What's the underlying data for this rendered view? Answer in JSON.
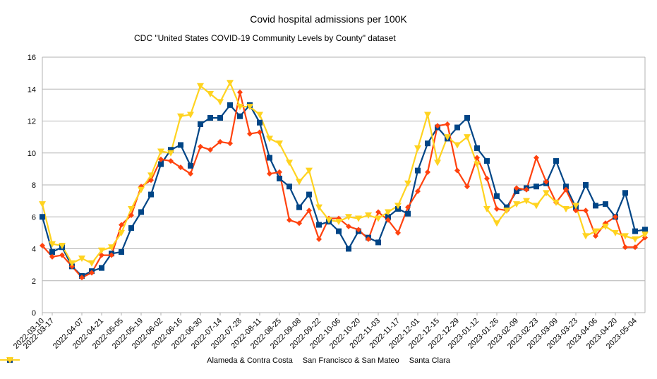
{
  "chart_data": {
    "type": "line",
    "title": "Covid hospital admissions per 100K",
    "subtitle": "CDC \"United States COVID-19 Community Levels by County\" dataset",
    "xlabel": "",
    "ylabel": "",
    "ylim": [
      0,
      16
    ],
    "yticks": [
      0,
      2,
      4,
      6,
      8,
      10,
      12,
      14,
      16
    ],
    "grid": true,
    "legend": "bottom",
    "x": [
      "2022-03-10",
      "2022-03-17",
      "2022-03-24",
      "2022-03-31",
      "2022-04-07",
      "2022-04-14",
      "2022-04-21",
      "2022-04-28",
      "2022-05-05",
      "2022-05-12",
      "2022-05-19",
      "2022-05-26",
      "2022-06-02",
      "2022-06-09",
      "2022-06-16",
      "2022-06-23",
      "2022-06-30",
      "2022-07-07",
      "2022-07-14",
      "2022-07-21",
      "2022-07-28",
      "2022-08-04",
      "2022-08-11",
      "2022-08-18",
      "2022-08-25",
      "2022-09-01",
      "2022-09-08",
      "2022-09-15",
      "2022-09-22",
      "2022-09-29",
      "2022-10-06",
      "2022-10-13",
      "2022-10-20",
      "2022-10-27",
      "2022-11-03",
      "2022-11-10",
      "2022-11-17",
      "2022-11-24",
      "2022-12-01",
      "2022-12-08",
      "2022-12-15",
      "2022-12-22",
      "2022-12-29",
      "2023-01-05",
      "2023-01-12",
      "2023-01-19",
      "2023-01-26",
      "2023-02-02",
      "2023-02-09",
      "2023-02-16",
      "2023-02-23",
      "2023-03-02",
      "2023-03-09",
      "2023-03-16",
      "2023-03-23",
      "2023-03-30",
      "2023-04-06",
      "2023-04-13",
      "2023-04-20",
      "2023-04-27",
      "2023-05-04",
      "2023-05-11"
    ],
    "x_tick_labels": [
      "2022-03-10",
      "2022-03-17",
      "2022-04-07",
      "2022-04-21",
      "2022-05-05",
      "2022-05-19",
      "2022-06-02",
      "2022-06-16",
      "2022-06-30",
      "2022-07-14",
      "2022-07-28",
      "2022-08-11",
      "2022-08-25",
      "2022-09-08",
      "2022-09-22",
      "2022-10-06",
      "2022-10-20",
      "2022-11-03",
      "2022-11-17",
      "2022-12-01",
      "2022-12-15",
      "2022-12-29",
      "2023-01-12",
      "2023-01-26",
      "2023-02-09",
      "2023-02-23",
      "2023-03-09",
      "2023-03-23",
      "2023-04-06",
      "2023-04-20",
      "2023-05-04"
    ],
    "series": [
      {
        "name": "Alameda & Contra Costa",
        "color": "#004586",
        "marker": "square",
        "values": [
          6.0,
          3.8,
          4.1,
          2.9,
          2.3,
          2.6,
          2.8,
          3.7,
          3.8,
          5.3,
          6.3,
          7.4,
          9.3,
          10.2,
          10.5,
          9.2,
          11.8,
          12.2,
          12.2,
          13.0,
          12.3,
          13.0,
          11.9,
          9.7,
          8.4,
          7.9,
          6.6,
          7.4,
          5.5,
          5.7,
          5.1,
          4.0,
          5.1,
          4.7,
          4.4,
          6.0,
          6.5,
          6.2,
          8.9,
          10.6,
          11.6,
          10.9,
          11.6,
          12.2,
          10.3,
          9.5,
          7.3,
          6.6,
          7.6,
          7.8,
          7.9,
          8.1,
          9.5,
          7.9,
          6.6,
          8.0,
          6.7,
          6.8,
          6.0,
          7.5,
          5.1,
          5.2
        ]
      },
      {
        "name": "San Francisco & San Mateo",
        "color": "#ff420e",
        "marker": "diamond",
        "values": [
          4.2,
          3.5,
          3.6,
          2.9,
          2.2,
          2.5,
          3.6,
          3.6,
          5.5,
          6.1,
          7.9,
          8.3,
          9.6,
          9.5,
          9.1,
          8.7,
          10.4,
          10.2,
          10.7,
          10.6,
          13.8,
          11.2,
          11.3,
          8.7,
          8.8,
          5.8,
          5.6,
          6.4,
          4.6,
          5.9,
          5.9,
          5.4,
          5.2,
          4.6,
          6.3,
          5.8,
          5.0,
          6.6,
          7.6,
          8.8,
          11.7,
          11.8,
          8.9,
          7.9,
          9.7,
          8.4,
          6.5,
          6.4,
          7.8,
          7.7,
          9.7,
          8.2,
          6.9,
          7.7,
          6.4,
          6.4,
          4.8,
          5.6,
          6.0,
          4.1,
          4.1,
          4.7
        ]
      },
      {
        "name": "Santa Clara",
        "color": "#ffd320",
        "marker": "triangle-down",
        "values": [
          6.8,
          4.3,
          4.2,
          3.1,
          3.4,
          3.1,
          3.9,
          4.1,
          5.0,
          6.5,
          7.7,
          8.6,
          10.1,
          10.0,
          12.3,
          12.4,
          14.2,
          13.7,
          13.2,
          14.4,
          12.9,
          12.9,
          12.4,
          10.9,
          10.6,
          9.4,
          8.2,
          8.9,
          6.6,
          5.8,
          5.7,
          6.0,
          5.9,
          6.1,
          5.9,
          6.3,
          6.7,
          8.1,
          10.3,
          12.4,
          9.4,
          11.0,
          10.5,
          11.0,
          9.3,
          6.5,
          5.6,
          6.4,
          6.8,
          7.0,
          6.7,
          7.5,
          6.9,
          6.5,
          6.7,
          4.8,
          5.1,
          5.4,
          5.0,
          4.8,
          4.6,
          4.9
        ]
      }
    ]
  }
}
